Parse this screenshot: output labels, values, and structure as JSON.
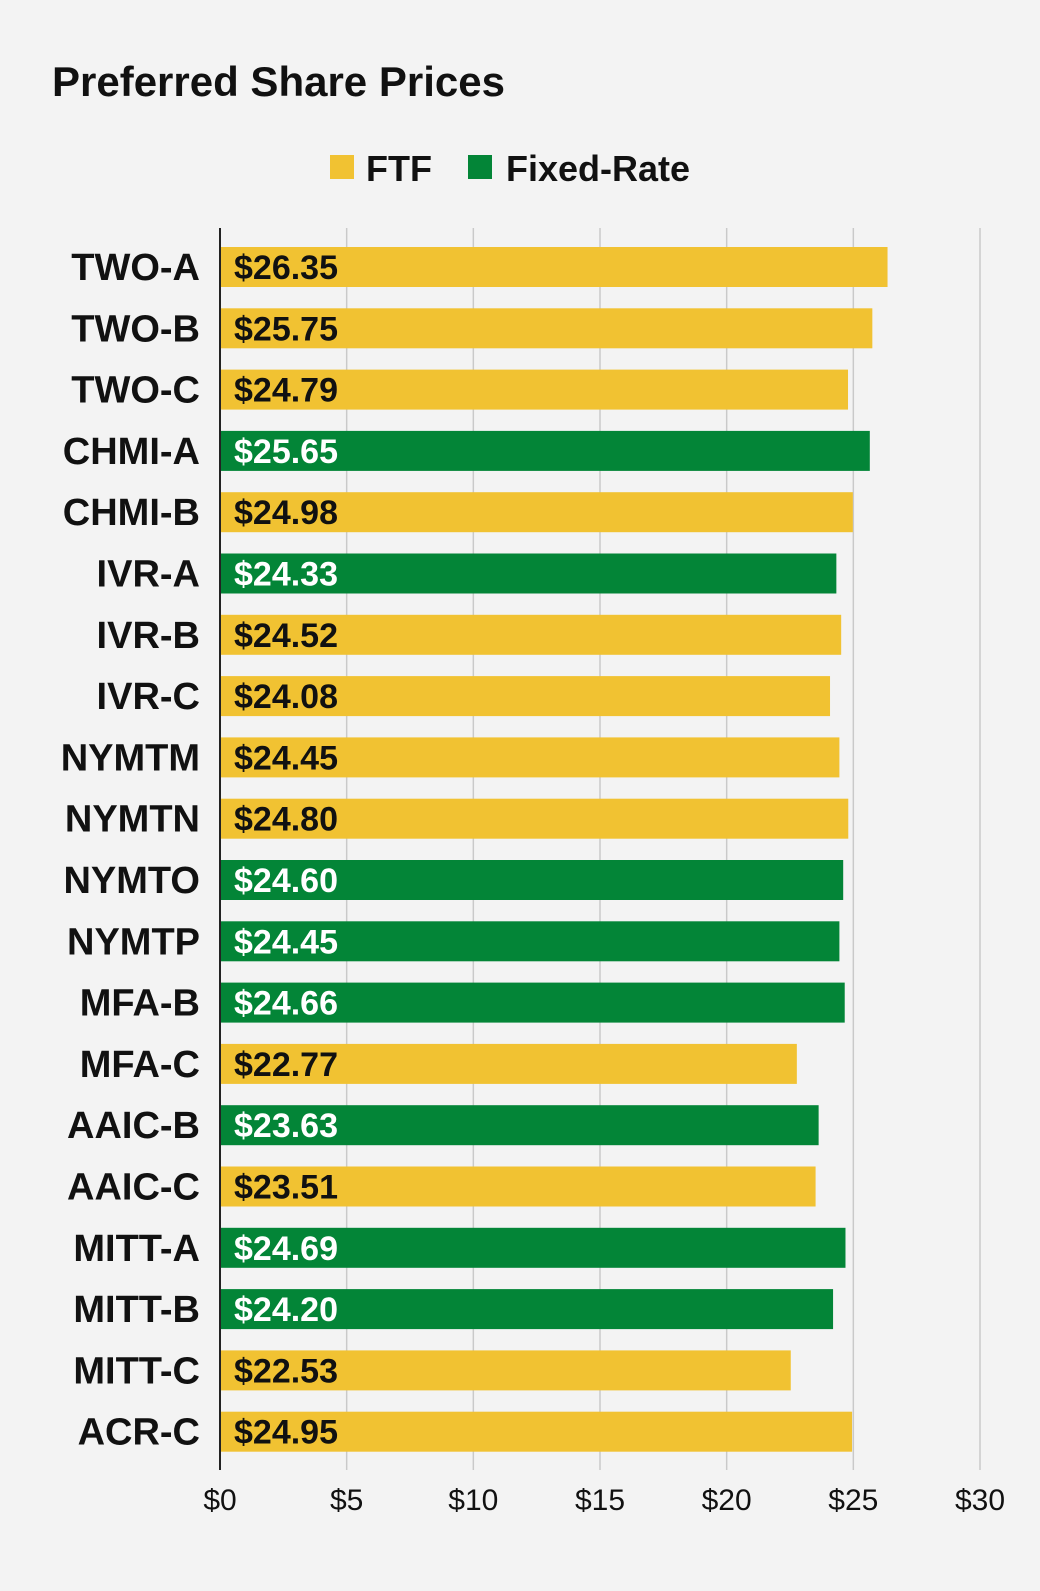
{
  "chart_data": {
    "type": "bar",
    "orientation": "horizontal",
    "title": "Preferred Share Prices",
    "legend": [
      {
        "name": "FTF",
        "color": "#f1c232"
      },
      {
        "name": "Fixed-Rate",
        "color": "#038537"
      }
    ],
    "legend_placement": "top-center",
    "grid": true,
    "xlim": [
      0,
      30
    ],
    "x_ticks": [
      {
        "value": 0,
        "label": "$0"
      },
      {
        "value": 5,
        "label": "$5"
      },
      {
        "value": 10,
        "label": "$10"
      },
      {
        "value": 15,
        "label": "$15"
      },
      {
        "value": 20,
        "label": "$20"
      },
      {
        "value": 25,
        "label": "$25"
      },
      {
        "value": 30,
        "label": "$30"
      }
    ],
    "bars": [
      {
        "category": "TWO-A",
        "value": 26.35,
        "label": "$26.35",
        "series": "FTF"
      },
      {
        "category": "TWO-B",
        "value": 25.75,
        "label": "$25.75",
        "series": "FTF"
      },
      {
        "category": "TWO-C",
        "value": 24.79,
        "label": "$24.79",
        "series": "FTF"
      },
      {
        "category": "CHMI-A",
        "value": 25.65,
        "label": "$25.65",
        "series": "Fixed-Rate"
      },
      {
        "category": "CHMI-B",
        "value": 24.98,
        "label": "$24.98",
        "series": "FTF"
      },
      {
        "category": "IVR-A",
        "value": 24.33,
        "label": "$24.33",
        "series": "Fixed-Rate"
      },
      {
        "category": "IVR-B",
        "value": 24.52,
        "label": "$24.52",
        "series": "FTF"
      },
      {
        "category": "IVR-C",
        "value": 24.08,
        "label": "$24.08",
        "series": "FTF"
      },
      {
        "category": "NYMTM",
        "value": 24.45,
        "label": "$24.45",
        "series": "FTF"
      },
      {
        "category": "NYMTN",
        "value": 24.8,
        "label": "$24.80",
        "series": "FTF"
      },
      {
        "category": "NYMTO",
        "value": 24.6,
        "label": "$24.60",
        "series": "Fixed-Rate"
      },
      {
        "category": "NYMTP",
        "value": 24.45,
        "label": "$24.45",
        "series": "Fixed-Rate"
      },
      {
        "category": "MFA-B",
        "value": 24.66,
        "label": "$24.66",
        "series": "Fixed-Rate"
      },
      {
        "category": "MFA-C",
        "value": 22.77,
        "label": "$22.77",
        "series": "FTF"
      },
      {
        "category": "AAIC-B",
        "value": 23.63,
        "label": "$23.63",
        "series": "Fixed-Rate"
      },
      {
        "category": "AAIC-C",
        "value": 23.51,
        "label": "$23.51",
        "series": "FTF"
      },
      {
        "category": "MITT-A",
        "value": 24.69,
        "label": "$24.69",
        "series": "Fixed-Rate"
      },
      {
        "category": "MITT-B",
        "value": 24.2,
        "label": "$24.20",
        "series": "Fixed-Rate"
      },
      {
        "category": "MITT-C",
        "value": 22.53,
        "label": "$22.53",
        "series": "FTF"
      },
      {
        "category": "ACR-C",
        "value": 24.95,
        "label": "$24.95",
        "series": "FTF"
      }
    ]
  }
}
